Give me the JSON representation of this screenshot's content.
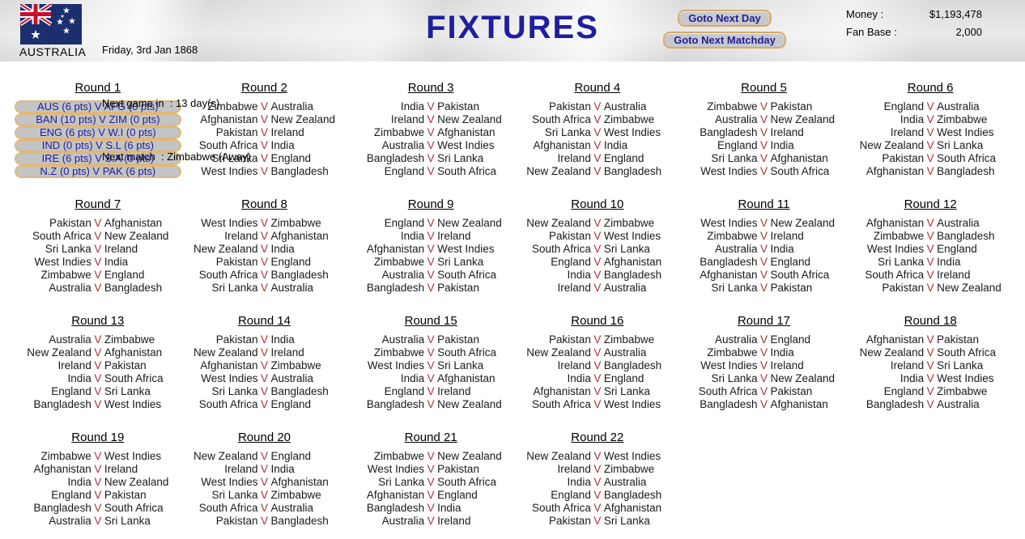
{
  "player_team": "Australia",
  "versus": "V",
  "colors": {
    "accent_navy": "#1e1e9e",
    "versus_red": "#a83434",
    "player_green": "#3aaa3a",
    "button_border_tan": "#d9a868"
  },
  "header": {
    "team_name": "AUSTRALIA",
    "date_line": "Friday, 3rd Jan 1868",
    "next_game_line": "Next game in  : 13 day(s).",
    "next_match_line": "Next match  : Zimbabwe (Away)",
    "title": "FIXTURES",
    "goto_next_day_label": "Goto Next Day",
    "goto_next_matchday_label": "Goto Next Matchday",
    "money_label": "Money :",
    "money_value": "$1,193,478",
    "fanbase_label": "Fan Base :",
    "fanbase_value": "2,000",
    "flag_icon": "australia-flag-icon"
  },
  "rounds": [
    {
      "label": "Round 1",
      "results": [
        "AUS (6 pts) V AFG (0 pts)",
        "BAN (10 pts) V ZIM (0 pts)",
        "ENG (6 pts) V W.I (0 pts)",
        "IND (0 pts) V S.L (6 pts)",
        "IRE (6 pts) V S.A (0 pts)",
        "N.Z (0 pts) V PAK (6 pts)"
      ]
    },
    {
      "label": "Round 2",
      "fixtures": [
        {
          "home": "Zimbabwe",
          "away": "Australia"
        },
        {
          "home": "Afghanistan",
          "away": "New Zealand"
        },
        {
          "home": "Pakistan",
          "away": "Ireland"
        },
        {
          "home": "South Africa",
          "away": "India"
        },
        {
          "home": "Sri Lanka",
          "away": "England"
        },
        {
          "home": "West Indies",
          "away": "Bangladesh"
        }
      ]
    },
    {
      "label": "Round 3",
      "fixtures": [
        {
          "home": "India",
          "away": "Pakistan"
        },
        {
          "home": "Ireland",
          "away": "New Zealand"
        },
        {
          "home": "Zimbabwe",
          "away": "Afghanistan"
        },
        {
          "home": "Australia",
          "away": "West Indies"
        },
        {
          "home": "Bangladesh",
          "away": "Sri Lanka"
        },
        {
          "home": "England",
          "away": "South Africa"
        }
      ]
    },
    {
      "label": "Round 4",
      "fixtures": [
        {
          "home": "Pakistan",
          "away": "Australia"
        },
        {
          "home": "South Africa",
          "away": "Zimbabwe"
        },
        {
          "home": "Sri Lanka",
          "away": "West Indies"
        },
        {
          "home": "Afghanistan",
          "away": "India"
        },
        {
          "home": "Ireland",
          "away": "England"
        },
        {
          "home": "New Zealand",
          "away": "Bangladesh"
        }
      ]
    },
    {
      "label": "Round 5",
      "fixtures": [
        {
          "home": "Zimbabwe",
          "away": "Pakistan"
        },
        {
          "home": "Australia",
          "away": "New Zealand"
        },
        {
          "home": "Bangladesh",
          "away": "Ireland"
        },
        {
          "home": "England",
          "away": "India"
        },
        {
          "home": "Sri Lanka",
          "away": "Afghanistan"
        },
        {
          "home": "West Indies",
          "away": "South Africa"
        }
      ]
    },
    {
      "label": "Round 6",
      "fixtures": [
        {
          "home": "England",
          "away": "Australia"
        },
        {
          "home": "India",
          "away": "Zimbabwe"
        },
        {
          "home": "Ireland",
          "away": "West Indies"
        },
        {
          "home": "New Zealand",
          "away": "Sri Lanka"
        },
        {
          "home": "Pakistan",
          "away": "South Africa"
        },
        {
          "home": "Afghanistan",
          "away": "Bangladesh"
        }
      ]
    },
    {
      "label": "Round 7",
      "fixtures": [
        {
          "home": "Pakistan",
          "away": "Afghanistan"
        },
        {
          "home": "South Africa",
          "away": "New Zealand"
        },
        {
          "home": "Sri Lanka",
          "away": "Ireland"
        },
        {
          "home": "West Indies",
          "away": "India"
        },
        {
          "home": "Zimbabwe",
          "away": "England"
        },
        {
          "home": "Australia",
          "away": "Bangladesh"
        }
      ]
    },
    {
      "label": "Round 8",
      "fixtures": [
        {
          "home": "West Indies",
          "away": "Zimbabwe"
        },
        {
          "home": "Ireland",
          "away": "Afghanistan"
        },
        {
          "home": "New Zealand",
          "away": "India"
        },
        {
          "home": "Pakistan",
          "away": "England"
        },
        {
          "home": "South Africa",
          "away": "Bangladesh"
        },
        {
          "home": "Sri Lanka",
          "away": "Australia"
        }
      ]
    },
    {
      "label": "Round 9",
      "fixtures": [
        {
          "home": "England",
          "away": "New Zealand"
        },
        {
          "home": "India",
          "away": "Ireland"
        },
        {
          "home": "Afghanistan",
          "away": "West Indies"
        },
        {
          "home": "Zimbabwe",
          "away": "Sri Lanka"
        },
        {
          "home": "Australia",
          "away": "South Africa"
        },
        {
          "home": "Bangladesh",
          "away": "Pakistan"
        }
      ]
    },
    {
      "label": "Round 10",
      "fixtures": [
        {
          "home": "New Zealand",
          "away": "Zimbabwe"
        },
        {
          "home": "Pakistan",
          "away": "West Indies"
        },
        {
          "home": "South Africa",
          "away": "Sri Lanka"
        },
        {
          "home": "England",
          "away": "Afghanistan"
        },
        {
          "home": "India",
          "away": "Bangladesh"
        },
        {
          "home": "Ireland",
          "away": "Australia"
        }
      ]
    },
    {
      "label": "Round 11",
      "fixtures": [
        {
          "home": "West Indies",
          "away": "New Zealand"
        },
        {
          "home": "Zimbabwe",
          "away": "Ireland"
        },
        {
          "home": "Australia",
          "away": "India"
        },
        {
          "home": "Bangladesh",
          "away": "England"
        },
        {
          "home": "Afghanistan",
          "away": "South Africa"
        },
        {
          "home": "Sri Lanka",
          "away": "Pakistan"
        }
      ]
    },
    {
      "label": "Round 12",
      "fixtures": [
        {
          "home": "Afghanistan",
          "away": "Australia"
        },
        {
          "home": "Zimbabwe",
          "away": "Bangladesh"
        },
        {
          "home": "West Indies",
          "away": "England"
        },
        {
          "home": "Sri Lanka",
          "away": "India"
        },
        {
          "home": "South Africa",
          "away": "Ireland"
        },
        {
          "home": "Pakistan",
          "away": "New Zealand"
        }
      ]
    },
    {
      "label": "Round 13",
      "fixtures": [
        {
          "home": "Australia",
          "away": "Zimbabwe"
        },
        {
          "home": "New Zealand",
          "away": "Afghanistan"
        },
        {
          "home": "Ireland",
          "away": "Pakistan"
        },
        {
          "home": "India",
          "away": "South Africa"
        },
        {
          "home": "England",
          "away": "Sri Lanka"
        },
        {
          "home": "Bangladesh",
          "away": "West Indies"
        }
      ]
    },
    {
      "label": "Round 14",
      "fixtures": [
        {
          "home": "Pakistan",
          "away": "India"
        },
        {
          "home": "New Zealand",
          "away": "Ireland"
        },
        {
          "home": "Afghanistan",
          "away": "Zimbabwe"
        },
        {
          "home": "West Indies",
          "away": "Australia"
        },
        {
          "home": "Sri Lanka",
          "away": "Bangladesh"
        },
        {
          "home": "South Africa",
          "away": "England"
        }
      ]
    },
    {
      "label": "Round 15",
      "fixtures": [
        {
          "home": "Australia",
          "away": "Pakistan"
        },
        {
          "home": "Zimbabwe",
          "away": "South Africa"
        },
        {
          "home": "West Indies",
          "away": "Sri Lanka"
        },
        {
          "home": "India",
          "away": "Afghanistan"
        },
        {
          "home": "England",
          "away": "Ireland"
        },
        {
          "home": "Bangladesh",
          "away": "New Zealand"
        }
      ]
    },
    {
      "label": "Round 16",
      "fixtures": [
        {
          "home": "Pakistan",
          "away": "Zimbabwe"
        },
        {
          "home": "New Zealand",
          "away": "Australia"
        },
        {
          "home": "Ireland",
          "away": "Bangladesh"
        },
        {
          "home": "India",
          "away": "England"
        },
        {
          "home": "Afghanistan",
          "away": "Sri Lanka"
        },
        {
          "home": "South Africa",
          "away": "West Indies"
        }
      ]
    },
    {
      "label": "Round 17",
      "fixtures": [
        {
          "home": "Australia",
          "away": "England"
        },
        {
          "home": "Zimbabwe",
          "away": "India"
        },
        {
          "home": "West Indies",
          "away": "Ireland"
        },
        {
          "home": "Sri Lanka",
          "away": "New Zealand"
        },
        {
          "home": "South Africa",
          "away": "Pakistan"
        },
        {
          "home": "Bangladesh",
          "away": "Afghanistan"
        }
      ]
    },
    {
      "label": "Round 18",
      "fixtures": [
        {
          "home": "Afghanistan",
          "away": "Pakistan"
        },
        {
          "home": "New Zealand",
          "away": "South Africa"
        },
        {
          "home": "Ireland",
          "away": "Sri Lanka"
        },
        {
          "home": "India",
          "away": "West Indies"
        },
        {
          "home": "England",
          "away": "Zimbabwe"
        },
        {
          "home": "Bangladesh",
          "away": "Australia"
        }
      ]
    },
    {
      "label": "Round 19",
      "fixtures": [
        {
          "home": "Zimbabwe",
          "away": "West Indies"
        },
        {
          "home": "Afghanistan",
          "away": "Ireland"
        },
        {
          "home": "India",
          "away": "New Zealand"
        },
        {
          "home": "England",
          "away": "Pakistan"
        },
        {
          "home": "Bangladesh",
          "away": "South Africa"
        },
        {
          "home": "Australia",
          "away": "Sri Lanka"
        }
      ]
    },
    {
      "label": "Round 20",
      "fixtures": [
        {
          "home": "New Zealand",
          "away": "England"
        },
        {
          "home": "Ireland",
          "away": "India"
        },
        {
          "home": "West Indies",
          "away": "Afghanistan"
        },
        {
          "home": "Sri Lanka",
          "away": "Zimbabwe"
        },
        {
          "home": "South Africa",
          "away": "Australia"
        },
        {
          "home": "Pakistan",
          "away": "Bangladesh"
        }
      ]
    },
    {
      "label": "Round 21",
      "fixtures": [
        {
          "home": "Zimbabwe",
          "away": "New Zealand"
        },
        {
          "home": "West Indies",
          "away": "Pakistan"
        },
        {
          "home": "Sri Lanka",
          "away": "South Africa"
        },
        {
          "home": "Afghanistan",
          "away": "England"
        },
        {
          "home": "Bangladesh",
          "away": "India"
        },
        {
          "home": "Australia",
          "away": "Ireland"
        }
      ]
    },
    {
      "label": "Round 22",
      "fixtures": [
        {
          "home": "New Zealand",
          "away": "West Indies"
        },
        {
          "home": "Ireland",
          "away": "Zimbabwe"
        },
        {
          "home": "India",
          "away": "Australia"
        },
        {
          "home": "England",
          "away": "Bangladesh"
        },
        {
          "home": "South Africa",
          "away": "Afghanistan"
        },
        {
          "home": "Pakistan",
          "away": "Sri Lanka"
        }
      ]
    }
  ]
}
